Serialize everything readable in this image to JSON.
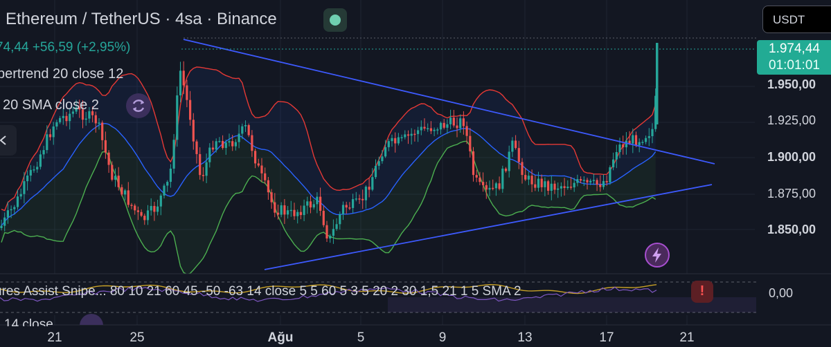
{
  "header": {
    "title": "Ethereum / TetherUS · 4sa · Binance",
    "price_change": "74,44 +56,59 (+2,95%)"
  },
  "indicators": {
    "supertrend": "pertrend 20 close 12",
    "bollinger": "20 SMA close 2"
  },
  "currency_button": {
    "label": "USDT"
  },
  "price_tag": {
    "price": "1.974,44",
    "countdown": "01:01:01"
  },
  "y_axis": {
    "labels": [
      "1.950,00",
      "1.925,00",
      "1.900,00",
      "1.875,00",
      "1.850,00"
    ],
    "bold_labels": [
      "1.950,00",
      "1.900,00",
      "1.850,00"
    ]
  },
  "oscillator": {
    "text": "ures Assist Snipe...  80 10 21 60 45 -50 -63 14 close 5 5 60 5 3 5 20 2 30 1,5 21 1 5 SMA 2",
    "value_label": "0,00",
    "partial_row": "14 close"
  },
  "x_axis": {
    "labels": [
      "21",
      "25",
      "Ağu",
      "5",
      "9",
      "13",
      "17",
      "21"
    ],
    "bold_label": "Ağu"
  },
  "colors": {
    "background": "#131722",
    "bull": "#26a69a",
    "bear": "#ef5350",
    "upper_band": "#e53935",
    "middle_band": "#2962ff",
    "lower_band": "#4caf50",
    "trendline": "#3d5afe",
    "oscillator": "#c9a227",
    "accent": "#22ab94"
  },
  "icons": {
    "live": "live-status-dot",
    "indicator_settings": "refresh-cycle-icon",
    "collapse": "chevron-left-icon",
    "alert": "exclamation-icon",
    "quick_action": "lightning-bolt-icon"
  }
}
